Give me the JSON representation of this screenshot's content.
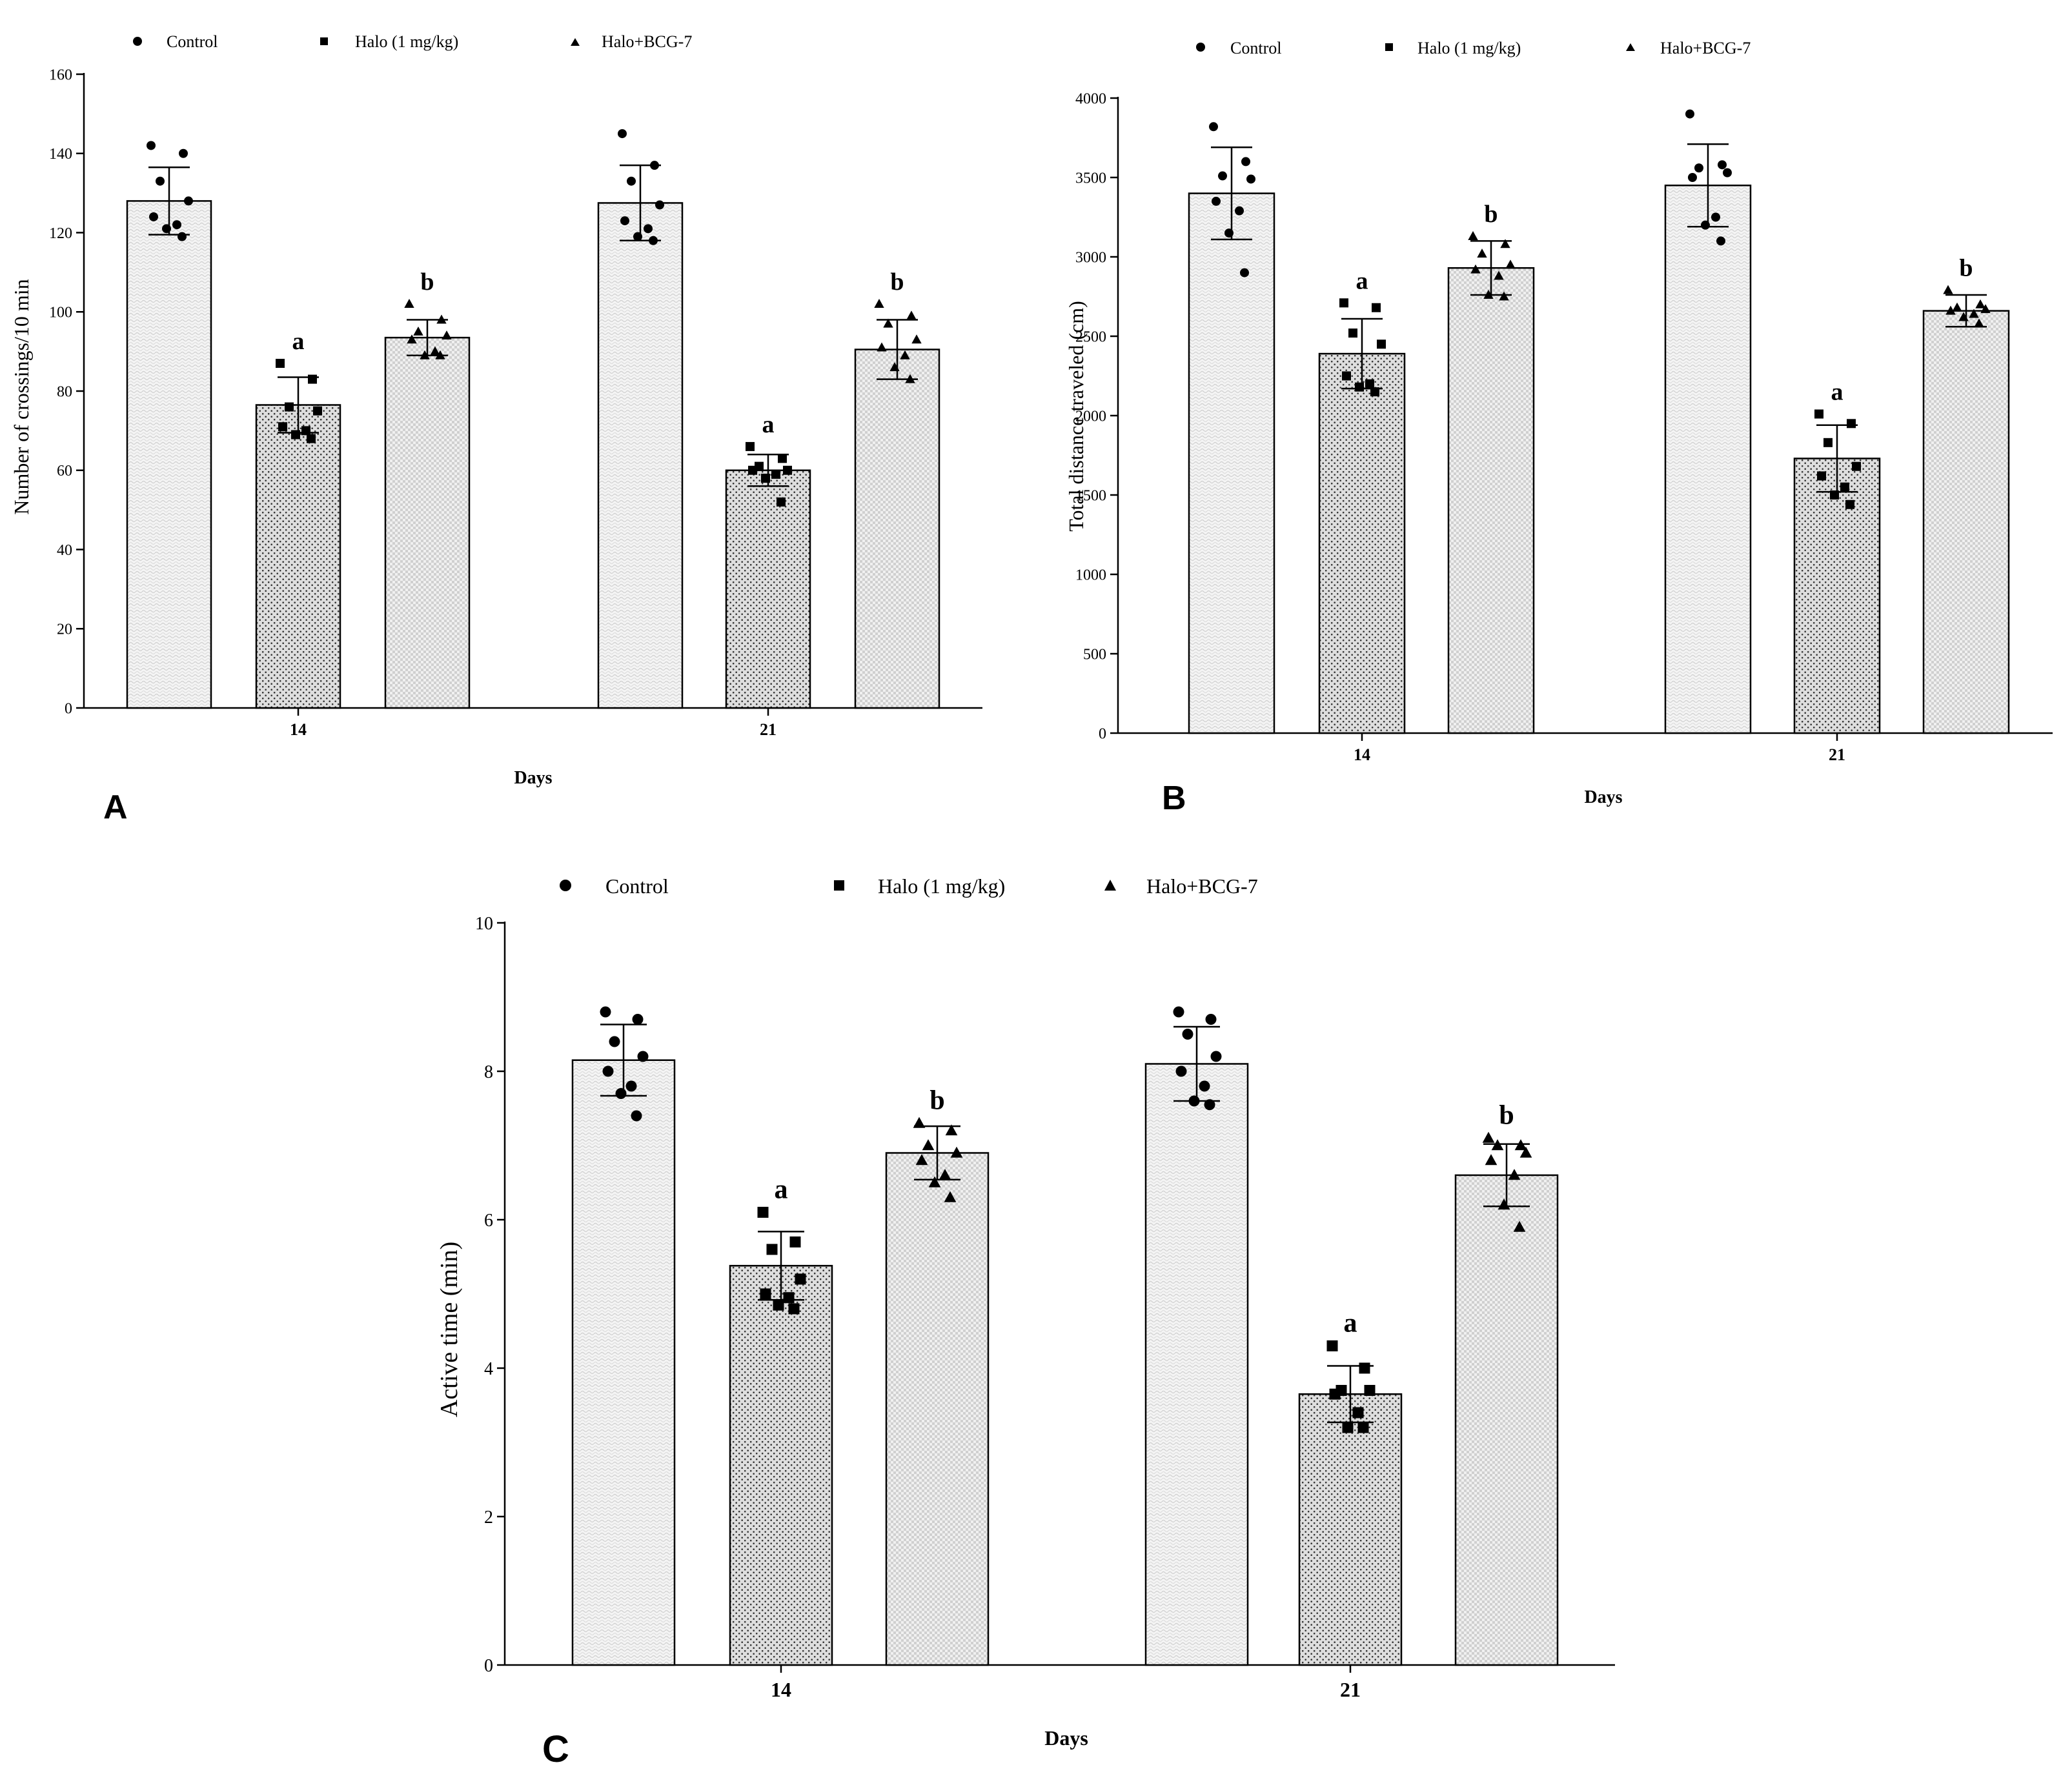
{
  "legend": [
    {
      "name": "Control",
      "marker": "circle",
      "pattern": "pat-control"
    },
    {
      "name": "Halo (1 mg/kg)",
      "marker": "square",
      "pattern": "pat-halo"
    },
    {
      "name": "Halo+BCG-7",
      "marker": "triangle",
      "pattern": "pat-bcg"
    }
  ],
  "chart_data": [
    {
      "panel": "A",
      "type": "bar",
      "ylabel": "Number of crossings/10 min",
      "xlabel": "Days",
      "categories": [
        "14",
        "21"
      ],
      "ylim": [
        0,
        160
      ],
      "yticks": [
        0,
        20,
        40,
        60,
        80,
        100,
        120,
        140,
        160
      ],
      "series": [
        {
          "name": "Control",
          "marker": "circle",
          "pattern": "pat-control",
          "values": [
            128,
            127.5
          ],
          "sd": [
            8.5,
            9.5
          ],
          "sig": [
            "",
            ""
          ],
          "points": [
            [
              142,
              140,
              133,
              128,
              124,
              122,
              121,
              119
            ],
            [
              145,
              137,
              133,
              127,
              123,
              121,
              119,
              118
            ]
          ]
        },
        {
          "name": "Halo (1 mg/kg)",
          "marker": "square",
          "pattern": "pat-halo",
          "values": [
            76.5,
            60
          ],
          "sd": [
            7,
            4
          ],
          "sig": [
            "a",
            "a"
          ],
          "points": [
            [
              87,
              83,
              76,
              75,
              71,
              70,
              69,
              68
            ],
            [
              66,
              63,
              61,
              60,
              60,
              59,
              58,
              52
            ]
          ]
        },
        {
          "name": "Halo+BCG-7",
          "marker": "triangle",
          "pattern": "pat-bcg",
          "values": [
            93.5,
            90.5
          ],
          "sd": [
            4.5,
            7.5
          ],
          "sig": [
            "b",
            "b"
          ],
          "points": [
            [
              102,
              98,
              95,
              94,
              93,
              90,
              89,
              89
            ],
            [
              102,
              99,
              97,
              93,
              91,
              89,
              86,
              83
            ]
          ]
        }
      ]
    },
    {
      "panel": "B",
      "type": "bar",
      "ylabel": "Total distance traveled (cm)",
      "xlabel": "Days",
      "categories": [
        "14",
        "21"
      ],
      "ylim": [
        0,
        4000
      ],
      "yticks": [
        0,
        500,
        1000,
        1500,
        2000,
        2500,
        3000,
        3500,
        4000
      ],
      "series": [
        {
          "name": "Control",
          "marker": "circle",
          "pattern": "pat-control",
          "values": [
            3400,
            3450
          ],
          "sd": [
            290,
            260
          ],
          "sig": [
            "",
            ""
          ],
          "points": [
            [
              3820,
              3600,
              3510,
              3490,
              3350,
              3290,
              3150,
              2900
            ],
            [
              3900,
              3580,
              3560,
              3530,
              3500,
              3250,
              3200,
              3100
            ]
          ]
        },
        {
          "name": "Halo (1 mg/kg)",
          "marker": "square",
          "pattern": "pat-halo",
          "values": [
            2390,
            1730
          ],
          "sd": [
            220,
            210
          ],
          "sig": [
            "a",
            "a"
          ],
          "points": [
            [
              2710,
              2680,
              2520,
              2450,
              2250,
              2200,
              2180,
              2150
            ],
            [
              2010,
              1950,
              1830,
              1680,
              1620,
              1550,
              1500,
              1440
            ]
          ]
        },
        {
          "name": "Halo+BCG-7",
          "marker": "triangle",
          "pattern": "pat-bcg",
          "values": [
            2930,
            2660
          ],
          "sd": [
            170,
            100
          ],
          "sig": [
            "b",
            "b"
          ],
          "points": [
            [
              3130,
              3080,
              3020,
              2950,
              2920,
              2880,
              2760,
              2750
            ],
            [
              2790,
              2700,
              2680,
              2670,
              2660,
              2640,
              2620,
              2580
            ]
          ]
        }
      ]
    },
    {
      "panel": "C",
      "type": "bar",
      "ylabel": "Active time (min)",
      "xlabel": "Days",
      "categories": [
        "14",
        "21"
      ],
      "ylim": [
        0,
        10
      ],
      "yticks": [
        0,
        2,
        4,
        6,
        8,
        10
      ],
      "series": [
        {
          "name": "Control",
          "marker": "circle",
          "pattern": "pat-control",
          "values": [
            8.15,
            8.1
          ],
          "sd": [
            0.48,
            0.5
          ],
          "sig": [
            "",
            ""
          ],
          "points": [
            [
              8.8,
              8.7,
              8.4,
              8.2,
              8.0,
              7.8,
              7.7,
              7.4
            ],
            [
              8.8,
              8.7,
              8.5,
              8.2,
              8.0,
              7.8,
              7.6,
              7.55
            ]
          ]
        },
        {
          "name": "Halo (1 mg/kg)",
          "marker": "square",
          "pattern": "pat-halo",
          "values": [
            5.38,
            3.65
          ],
          "sd": [
            0.46,
            0.38
          ],
          "sig": [
            "a",
            "a"
          ],
          "points": [
            [
              6.1,
              5.7,
              5.6,
              5.2,
              5.0,
              4.95,
              4.85,
              4.8
            ],
            [
              4.3,
              4.0,
              3.7,
              3.7,
              3.65,
              3.4,
              3.2,
              3.2
            ]
          ]
        },
        {
          "name": "Halo+BCG-7",
          "marker": "triangle",
          "pattern": "pat-bcg",
          "values": [
            6.9,
            6.6
          ],
          "sd": [
            0.36,
            0.42
          ],
          "sig": [
            "b",
            "b"
          ],
          "points": [
            [
              7.3,
              7.2,
              7.0,
              6.9,
              6.8,
              6.6,
              6.5,
              6.3
            ],
            [
              7.1,
              7.0,
              7.0,
              6.9,
              6.8,
              6.6,
              6.2,
              5.9
            ]
          ]
        }
      ]
    }
  ]
}
